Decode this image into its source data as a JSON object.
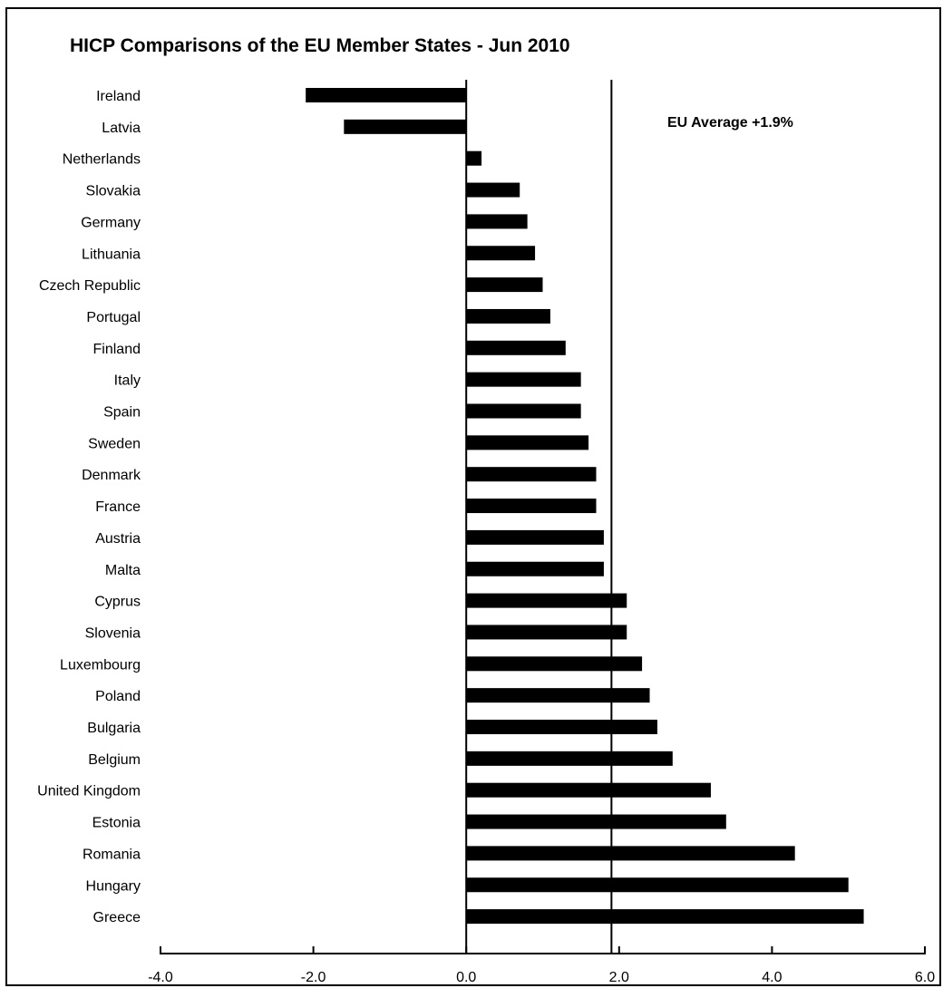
{
  "chart_data": {
    "type": "bar",
    "orientation": "horizontal",
    "title": "HICP Comparisons of the EU Member States -  Jun 2010",
    "categories": [
      "Ireland",
      "Latvia",
      "Netherlands",
      "Slovakia",
      "Germany",
      "Lithuania",
      "Czech Republic",
      "Portugal",
      "Finland",
      "Italy",
      "Spain",
      "Sweden",
      "Denmark",
      "France",
      "Austria",
      "Malta",
      "Cyprus",
      "Slovenia",
      "Luxembourg",
      "Poland",
      "Bulgaria",
      "Belgium",
      "United Kingdom",
      "Estonia",
      "Romania",
      "Hungary",
      "Greece"
    ],
    "values": [
      -2.1,
      -1.6,
      0.2,
      0.7,
      0.8,
      0.9,
      1.0,
      1.1,
      1.3,
      1.5,
      1.5,
      1.6,
      1.7,
      1.7,
      1.8,
      1.8,
      2.1,
      2.1,
      2.3,
      2.4,
      2.5,
      2.7,
      3.2,
      3.4,
      4.3,
      5.0,
      5.2
    ],
    "xlim": [
      -4.0,
      6.0
    ],
    "xticks": [
      "-4.0",
      "-2.0",
      "0.0",
      "2.0",
      "4.0",
      "6.0"
    ],
    "reference_line": {
      "value": 1.9,
      "label": "EU Average +1.9%"
    },
    "bar_color": "#000000",
    "grid": false,
    "legend": "none"
  }
}
